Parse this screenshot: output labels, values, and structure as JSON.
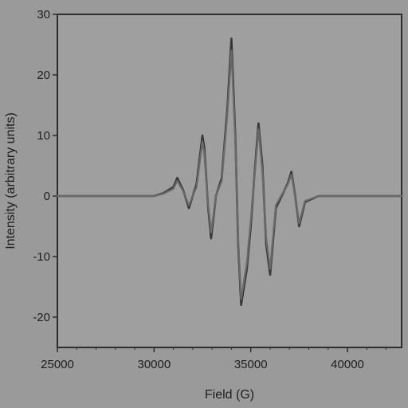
{
  "chart_data": {
    "type": "line",
    "xlabel": "Field (G)",
    "ylabel": "Intensity (arbitrary units)",
    "xlim": [
      25000,
      42800
    ],
    "ylim": [
      -25,
      30
    ],
    "x_ticks": [
      25000,
      30000,
      35000,
      40000
    ],
    "x_tick_labels": [
      "25000",
      "30000",
      "35000",
      "40000"
    ],
    "y_ticks": [
      -20,
      -10,
      0,
      10,
      20,
      30
    ],
    "y_tick_labels": [
      "-20",
      "-10",
      "0",
      "10",
      "20",
      "30"
    ],
    "grid": false,
    "legend": "none",
    "series": [
      {
        "color": "#383838",
        "x": [
          25000,
          26000,
          27000,
          28000,
          29000,
          30000,
          30500,
          31000,
          31200,
          31500,
          31800,
          32200,
          32500,
          32600,
          32800,
          32950,
          33200,
          33500,
          33800,
          34000,
          34200,
          34350,
          34500,
          34800,
          35000,
          35200,
          35400,
          35600,
          35800,
          36000,
          36300,
          36600,
          36900,
          37100,
          37300,
          37500,
          37800,
          38500,
          39000,
          40000,
          41000,
          42000,
          42800
        ],
        "y": [
          0,
          0,
          0,
          0,
          0,
          0,
          0.5,
          1.5,
          3,
          1,
          -2,
          2,
          10,
          8,
          -2,
          -7,
          0,
          3,
          15,
          26,
          10,
          -8,
          -18,
          -12,
          -5,
          4,
          12,
          5,
          -8,
          -13,
          -2,
          0,
          2,
          4,
          0,
          -5,
          -1,
          0,
          0,
          0,
          0,
          0,
          0
        ]
      },
      {
        "color": "#6a6a6a",
        "x": [
          25000,
          26000,
          27000,
          28000,
          29000,
          30000,
          30500,
          31000,
          31200,
          31500,
          31800,
          32200,
          32500,
          32600,
          32800,
          32950,
          33200,
          33500,
          33800,
          34000,
          34200,
          34350,
          34500,
          34800,
          35000,
          35200,
          35400,
          35600,
          35800,
          36000,
          36300,
          36600,
          36900,
          37100,
          37300,
          37500,
          37800,
          38500,
          39000,
          40000,
          41000,
          42000,
          42800
        ],
        "y": [
          0,
          0,
          0,
          0,
          0,
          0,
          0.4,
          1.2,
          2.5,
          0.8,
          -1.5,
          1.5,
          9,
          7,
          -1.5,
          -6,
          0,
          2.5,
          14,
          24,
          9,
          -7,
          -17,
          -11,
          -4,
          3.5,
          11,
          4,
          -7,
          -12,
          -1.5,
          0.2,
          1.8,
          3.5,
          0,
          -4.5,
          -0.8,
          0,
          0,
          0,
          0,
          0,
          0
        ]
      }
    ]
  }
}
